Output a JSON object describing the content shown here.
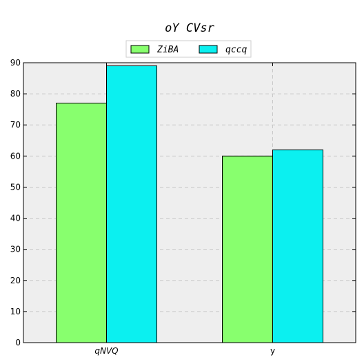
{
  "chart_data": {
    "type": "bar",
    "title": "oY CVsr",
    "xlabel": "",
    "ylabel": "",
    "categories": [
      "qNVQ",
      "y"
    ],
    "series": [
      {
        "name": "ZiBA",
        "values": [
          77,
          60
        ],
        "color": "#88ff6e"
      },
      {
        "name": "qccq",
        "values": [
          89,
          62
        ],
        "color": "#0bf0f0"
      }
    ],
    "ylim": [
      0,
      90
    ],
    "yticks": [
      0,
      10,
      20,
      30,
      40,
      50,
      60,
      70,
      80,
      90
    ],
    "grid": true,
    "legend": "top-center",
    "plot_background": "#eeeeee"
  }
}
